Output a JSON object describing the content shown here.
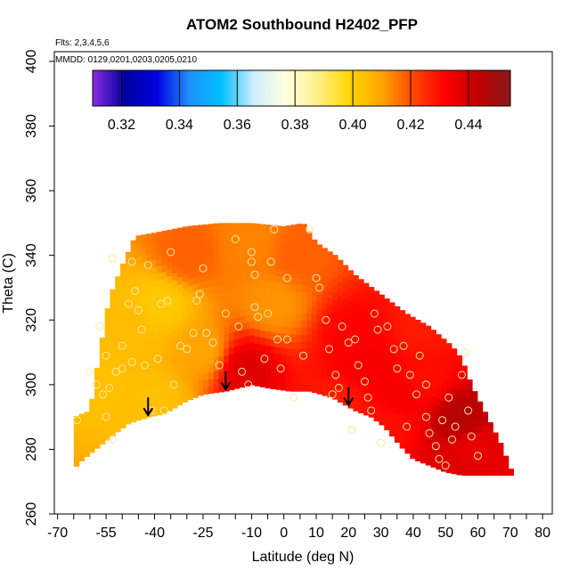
{
  "chart_data": {
    "type": "heatmap",
    "title": "ATOM2 Southbound H2402_PFP",
    "flights_note": "Flts: 2,3,4,5,6",
    "dates_note": "MMDD: 0129,0201,0203,0205,0210",
    "xlabel": "Latitude (deg N)",
    "ylabel": "Theta (C)",
    "xlim": [
      -71,
      83
    ],
    "ylim": [
      260,
      403
    ],
    "x_minor_ticks": [
      -70,
      -65,
      -60,
      -55,
      -50,
      -45,
      -40,
      -35,
      -30,
      -25,
      -20,
      -15,
      -10,
      -5,
      0,
      5,
      10,
      15,
      20,
      25,
      30,
      35,
      40,
      45,
      50,
      55,
      60,
      65,
      70,
      75,
      80
    ],
    "x_tick_labels": [
      {
        "v": -70,
        "t": "-70"
      },
      {
        "v": -55,
        "t": "-55"
      },
      {
        "v": -40,
        "t": "-40"
      },
      {
        "v": -25,
        "t": "-25"
      },
      {
        "v": -10,
        "t": "-10"
      },
      {
        "v": 0,
        "t": "0"
      },
      {
        "v": 10,
        "t": "10"
      },
      {
        "v": 20,
        "t": "20"
      },
      {
        "v": 30,
        "t": "30"
      },
      {
        "v": 40,
        "t": "40"
      },
      {
        "v": 50,
        "t": "50"
      },
      {
        "v": 60,
        "t": "60"
      },
      {
        "v": 70,
        "t": "70"
      },
      {
        "v": 80,
        "t": "80"
      }
    ],
    "y_ticks": [
      260,
      280,
      300,
      320,
      340,
      360,
      380,
      400
    ],
    "colorbar": {
      "min": 0.31,
      "max": 0.4545,
      "ticks": [
        0.32,
        0.34,
        0.36,
        0.38,
        0.4,
        0.42,
        0.44
      ],
      "tick_labels": [
        "0.32",
        "0.34",
        "0.36",
        "0.38",
        "0.40",
        "0.42",
        "0.44"
      ],
      "stops": [
        "#8a2be2",
        "#0000a0",
        "#0000e0",
        "#1e90ff",
        "#00bfff",
        "#cdeefe",
        "#ffffe0",
        "#fff08a",
        "#ffd700",
        "#ffa500",
        "#ff4500",
        "#ff0000",
        "#c00000",
        "#8b1a1a"
      ]
    },
    "field": {
      "lat_range": [
        -65,
        71
      ],
      "lower_boundary": [
        [
          -65,
          274
        ],
        [
          -62,
          277
        ],
        [
          -57,
          281
        ],
        [
          -52,
          285
        ],
        [
          -48,
          288
        ],
        [
          -42,
          290
        ],
        [
          -37,
          291
        ],
        [
          -30,
          295
        ],
        [
          -25,
          297
        ],
        [
          -18,
          298
        ],
        [
          -10,
          300
        ],
        [
          -5,
          299
        ],
        [
          2,
          298
        ],
        [
          8,
          298
        ],
        [
          15,
          296
        ],
        [
          22,
          292
        ],
        [
          27,
          290
        ],
        [
          31,
          287
        ],
        [
          36,
          281
        ],
        [
          40,
          277
        ],
        [
          45,
          275
        ],
        [
          50,
          273
        ],
        [
          55,
          272
        ],
        [
          60,
          272
        ],
        [
          65,
          272
        ],
        [
          71,
          272
        ]
      ],
      "upper_boundary": [
        [
          -65,
          290
        ],
        [
          -60,
          292
        ],
        [
          -57,
          310
        ],
        [
          -54,
          327
        ],
        [
          -50,
          337
        ],
        [
          -46,
          346
        ],
        [
          -40,
          347
        ],
        [
          -30,
          349
        ],
        [
          -20,
          350
        ],
        [
          -10,
          350
        ],
        [
          0,
          349
        ],
        [
          6,
          350
        ],
        [
          10,
          344
        ],
        [
          16,
          340
        ],
        [
          22,
          334
        ],
        [
          30,
          328
        ],
        [
          38,
          322
        ],
        [
          45,
          318
        ],
        [
          52,
          312
        ],
        [
          55,
          308
        ],
        [
          58,
          300
        ],
        [
          62,
          292
        ],
        [
          67,
          282
        ],
        [
          71,
          272
        ]
      ],
      "hotspots": [
        {
          "lat": 54,
          "theta": 289,
          "val": 0.446
        },
        {
          "lat": 53,
          "theta": 276,
          "val": 0.438
        },
        {
          "lat": 58,
          "theta": 280,
          "val": 0.436
        },
        {
          "lat": -12,
          "theta": 305,
          "val": 0.438
        },
        {
          "lat": 26,
          "theta": 306,
          "val": 0.434
        },
        {
          "lat": 22,
          "theta": 316,
          "val": 0.432
        },
        {
          "lat": 36,
          "theta": 296,
          "val": 0.434
        },
        {
          "lat": 43,
          "theta": 302,
          "val": 0.43
        },
        {
          "lat": 42,
          "theta": 318,
          "val": 0.428
        },
        {
          "lat": 18,
          "theta": 293,
          "val": 0.428
        },
        {
          "lat": 33,
          "theta": 288,
          "val": 0.43
        },
        {
          "lat": -38,
          "theta": 325,
          "val": 0.402
        },
        {
          "lat": -55,
          "theta": 300,
          "val": 0.404
        },
        {
          "lat": -48,
          "theta": 318,
          "val": 0.405
        },
        {
          "lat": -25,
          "theta": 310,
          "val": 0.41
        },
        {
          "lat": -10,
          "theta": 345,
          "val": 0.414
        },
        {
          "lat": 5,
          "theta": 340,
          "val": 0.418
        },
        {
          "lat": -40,
          "theta": 295,
          "val": 0.404
        },
        {
          "lat": -30,
          "theta": 340,
          "val": 0.418
        },
        {
          "lat": -3,
          "theta": 325,
          "val": 0.412
        }
      ],
      "background_value": 0.418
    },
    "sample_points": [
      [
        -64,
        289
      ],
      [
        -55,
        290
      ],
      [
        -56,
        297
      ],
      [
        -54,
        299
      ],
      [
        -52,
        304
      ],
      [
        -55,
        309
      ],
      [
        -57,
        318
      ],
      [
        -50,
        312
      ],
      [
        -48,
        325
      ],
      [
        -46,
        329
      ],
      [
        -45,
        323
      ],
      [
        -44,
        317
      ],
      [
        -47,
        307
      ],
      [
        -43,
        306
      ],
      [
        -38,
        325
      ],
      [
        -36,
        326
      ],
      [
        -39,
        308
      ],
      [
        -37,
        292
      ],
      [
        -34,
        300
      ],
      [
        -32,
        312
      ],
      [
        -30,
        311
      ],
      [
        -28,
        316
      ],
      [
        -27,
        326
      ],
      [
        -26,
        328
      ],
      [
        -25,
        336
      ],
      [
        -24,
        316
      ],
      [
        -22,
        313
      ],
      [
        -20,
        306
      ],
      [
        -18,
        322
      ],
      [
        -15,
        345
      ],
      [
        -14,
        318
      ],
      [
        -13,
        304
      ],
      [
        -11,
        300
      ],
      [
        -10,
        341
      ],
      [
        -10,
        338
      ],
      [
        -9,
        334
      ],
      [
        -9,
        324
      ],
      [
        -8,
        321
      ],
      [
        -6,
        308
      ],
      [
        -5,
        322
      ],
      [
        -3,
        348
      ],
      [
        -2,
        314
      ],
      [
        -1,
        305
      ],
      [
        1,
        333
      ],
      [
        3,
        296
      ],
      [
        6,
        309
      ],
      [
        8,
        348
      ],
      [
        10,
        333
      ],
      [
        11,
        330
      ],
      [
        13,
        320
      ],
      [
        14,
        311
      ],
      [
        16,
        303
      ],
      [
        17,
        299
      ],
      [
        18,
        318
      ],
      [
        20,
        313
      ],
      [
        22,
        314
      ],
      [
        23,
        306
      ],
      [
        25,
        301
      ],
      [
        26,
        296
      ],
      [
        28,
        322
      ],
      [
        29,
        317
      ],
      [
        32,
        318
      ],
      [
        34,
        311
      ],
      [
        35,
        305
      ],
      [
        37,
        312
      ],
      [
        39,
        303
      ],
      [
        41,
        297
      ],
      [
        42,
        309
      ],
      [
        44,
        300
      ],
      [
        45,
        285
      ],
      [
        47,
        281
      ],
      [
        49,
        289
      ],
      [
        51,
        296
      ],
      [
        53,
        287
      ],
      [
        55,
        303
      ],
      [
        56,
        310
      ],
      [
        57,
        292
      ],
      [
        58,
        284
      ],
      [
        60,
        278
      ],
      [
        52,
        283
      ],
      [
        50,
        275
      ],
      [
        48,
        277
      ],
      [
        44,
        290
      ],
      [
        38,
        287
      ],
      [
        30,
        282
      ],
      [
        27,
        292
      ],
      [
        21,
        286
      ],
      [
        15,
        297
      ],
      [
        -41,
        292
      ],
      [
        -50,
        305
      ],
      [
        -58,
        300
      ],
      [
        -60,
        304
      ],
      [
        -53,
        283
      ],
      [
        -35,
        341
      ],
      [
        -42,
        337
      ],
      [
        -47,
        338
      ],
      [
        -53,
        339
      ],
      [
        -4,
        338
      ],
      [
        1,
        314
      ]
    ],
    "arrows": [
      -42,
      -18,
      20
    ]
  }
}
